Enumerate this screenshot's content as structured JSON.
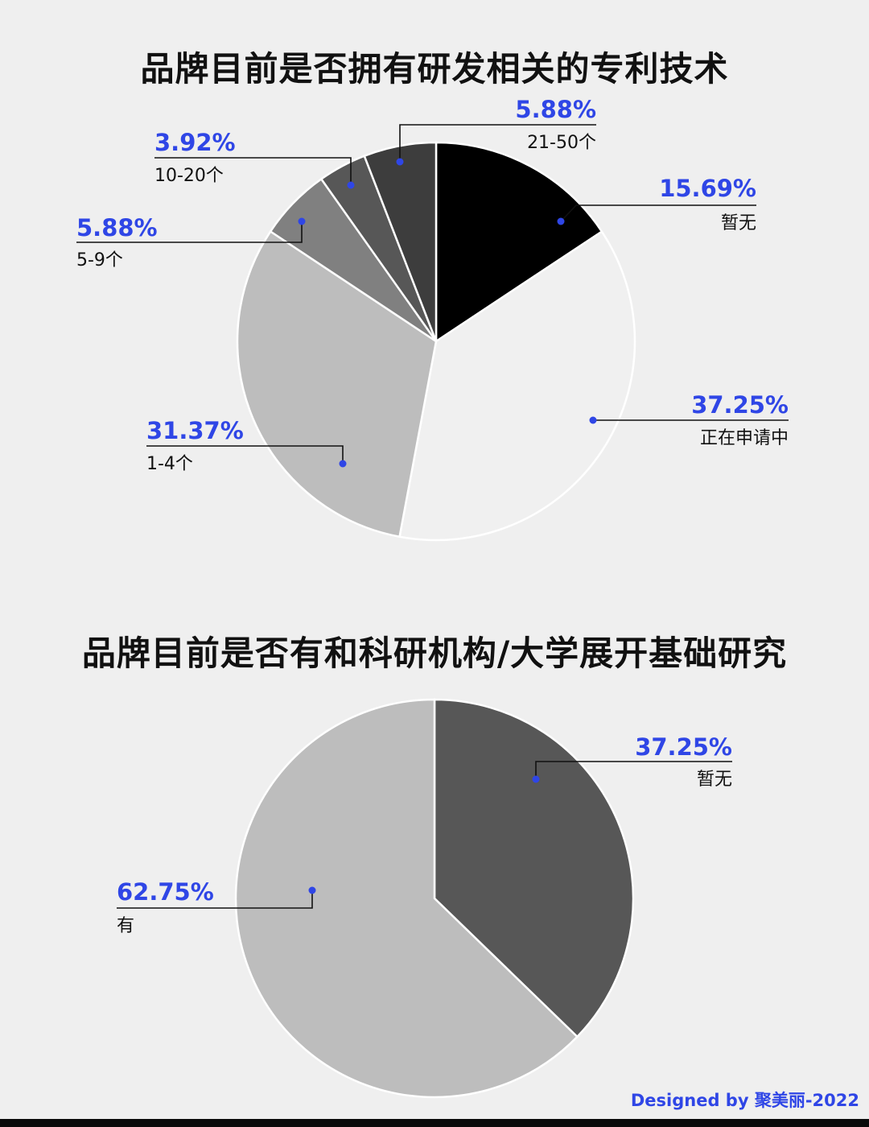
{
  "credit": "Designed by 聚美丽-2022",
  "chart_data": [
    {
      "type": "pie",
      "title": "品牌目前是否拥有研发相关的专利技术",
      "labels": [
        "暂无",
        "正在申请中",
        "1-4个",
        "5-9个",
        "10-20个",
        "21-50个"
      ],
      "values": [
        15.69,
        37.25,
        31.37,
        5.88,
        3.92,
        5.88
      ],
      "value_labels": [
        "15.69%",
        "37.25%",
        "31.37%",
        "5.88%",
        "3.92%",
        "5.88%"
      ],
      "colors": [
        "#000000",
        "#f0f0f0",
        "#bdbdbd",
        "#808080",
        "#575757",
        "#3d3d3d"
      ]
    },
    {
      "type": "pie",
      "title": "品牌目前是否有和科研机构/大学展开基础研究",
      "labels": [
        "暂无",
        "有"
      ],
      "values": [
        37.25,
        62.75
      ],
      "value_labels": [
        "37.25%",
        "62.75%"
      ],
      "colors": [
        "#575757",
        "#bdbdbd"
      ]
    }
  ]
}
